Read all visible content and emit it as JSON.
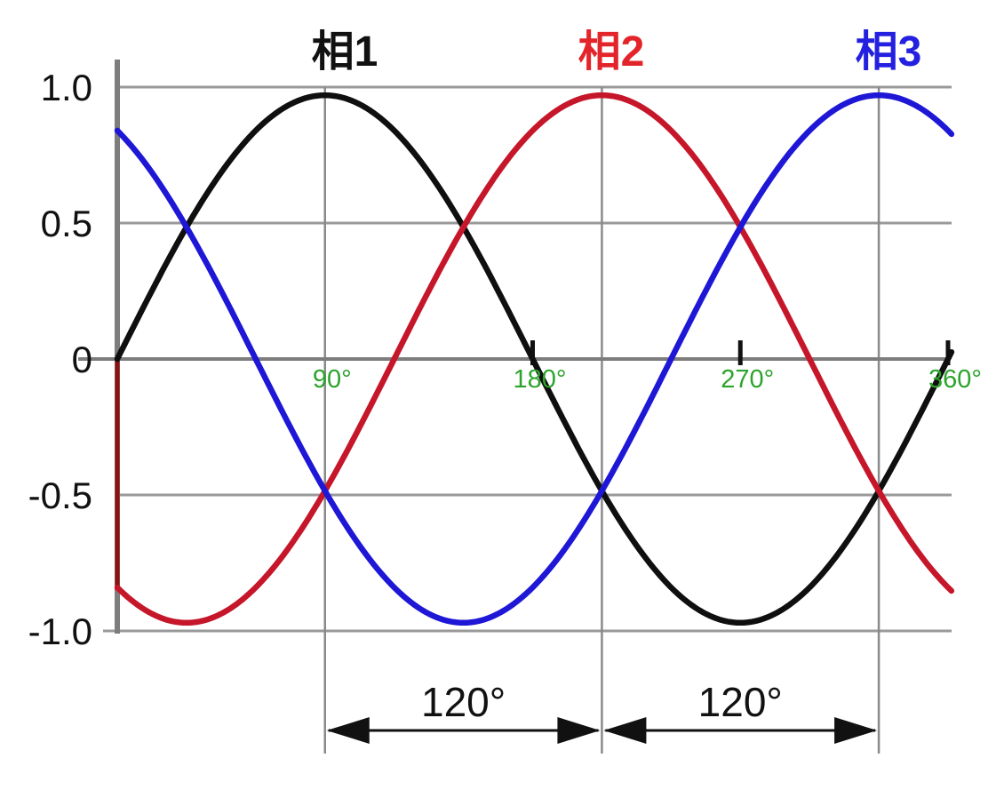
{
  "chart_data": {
    "type": "line",
    "description": "Three-phase sine waves, 120 degrees apart",
    "function": "y = amplitude * sin(x + phase_deg)",
    "x_unit": "degrees",
    "x_range_deg": [
      0,
      361
    ],
    "y_range": [
      -1.0,
      1.0
    ],
    "grid_on": true,
    "grid_color": "#999999",
    "axis_color": "#7d7d7d",
    "vertical_grid_color": "#8a8a8a",
    "x_tick_label_color": "#2ca32c",
    "y_tick_label_color": "#111111",
    "x_ticks": [
      {
        "label": "90°",
        "deg": 90,
        "tick_mark": false
      },
      {
        "label": "180°",
        "deg": 180,
        "tick_mark": true
      },
      {
        "label": "270°",
        "deg": 270,
        "tick_mark": true
      },
      {
        "label": "360°",
        "deg": 360,
        "tick_mark": true
      }
    ],
    "y_ticks": [
      {
        "label": "1.0",
        "value": 1.0
      },
      {
        "label": "0.5",
        "value": 0.5
      },
      {
        "label": "0",
        "value": 0.0
      },
      {
        "label": "-0.5",
        "value": -0.5
      },
      {
        "label": "-1.0",
        "value": -1.0
      }
    ],
    "vertical_gridlines_deg": [
      90,
      210,
      330
    ],
    "series": [
      {
        "name": "相1",
        "phase_deg": 0,
        "amplitude": 1.0,
        "stroke": "#0f0f0f",
        "title_color": "#111111"
      },
      {
        "name": "相2",
        "phase_deg": -120,
        "amplitude": 1.0,
        "stroke": "#c5162a",
        "title_color": "#e3242a"
      },
      {
        "name": "相3",
        "phase_deg": 120,
        "amplitude": 1.0,
        "stroke": "#1e17d6",
        "title_color": "#2420e0"
      }
    ],
    "phase2_start_line": {
      "at_deg": 0,
      "from_value": 0.0,
      "to_value": -0.866,
      "color": "#8e1111"
    },
    "annotations": [
      {
        "label": "120°",
        "from_deg": 90,
        "to_deg": 210
      },
      {
        "label": "120°",
        "from_deg": 210,
        "to_deg": 330
      }
    ],
    "annotation_color": "#111111"
  }
}
